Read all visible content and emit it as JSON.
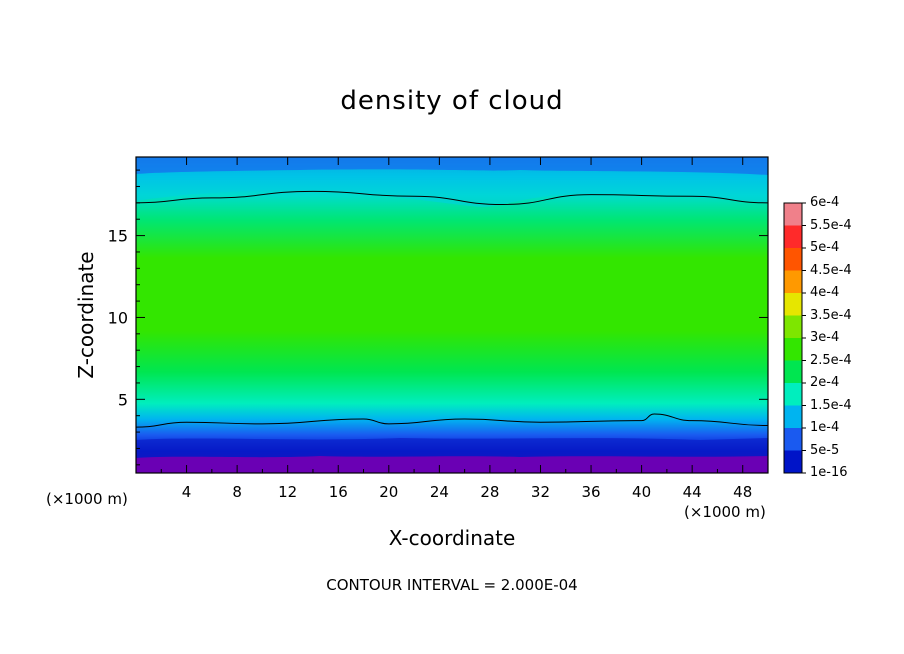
{
  "chart_data": {
    "type": "heatmap",
    "title": "density of cloud",
    "xlabel": "X-coordinate",
    "ylabel": "Z-coordinate",
    "x_unit": "(×1000 m)",
    "xlim": [
      0,
      50
    ],
    "ylim": [
      0.5,
      19.8
    ],
    "x_ticks": [
      4,
      8,
      12,
      16,
      20,
      24,
      28,
      32,
      36,
      40,
      44,
      48
    ],
    "y_ticks": [
      5,
      10,
      15
    ],
    "note": "CONTOUR INTERVAL = 2.000E-04",
    "colorbar": {
      "labels": [
        "6e-4",
        "5.5e-4",
        "5e-4",
        "4.5e-4",
        "4e-4",
        "3.5e-4",
        "3e-4",
        "2.5e-4",
        "2e-4",
        "1.5e-4",
        "1e-4",
        "5e-5",
        "1e-16"
      ],
      "colors": [
        "#f0808a",
        "#ff2a2a",
        "#ff5500",
        "#ff9900",
        "#e6e600",
        "#7ee600",
        "#33e600",
        "#00e650",
        "#00eebe",
        "#00b4f0",
        "#1a5af0",
        "#0014c8",
        "#6a00b4"
      ]
    },
    "contour_lines": [
      {
        "level": "2e-4",
        "z_profile": [
          [
            0,
            17.0
          ],
          [
            6,
            17.3
          ],
          [
            14,
            17.7
          ],
          [
            22,
            17.4
          ],
          [
            29,
            16.9
          ],
          [
            36,
            17.5
          ],
          [
            44,
            17.4
          ],
          [
            50,
            17.0
          ]
        ]
      },
      {
        "level": "2e-4",
        "z_profile": [
          [
            0,
            3.3
          ],
          [
            4,
            3.6
          ],
          [
            10,
            3.5
          ],
          [
            18,
            3.8
          ],
          [
            20,
            3.5
          ],
          [
            26,
            3.8
          ],
          [
            32,
            3.6
          ],
          [
            40,
            3.7
          ],
          [
            41,
            4.1
          ],
          [
            44,
            3.7
          ],
          [
            50,
            3.4
          ]
        ]
      }
    ],
    "field_profile": [
      {
        "z": 19.8,
        "value": "1.5e-4"
      },
      {
        "z": 17.5,
        "value": "2e-4"
      },
      {
        "z": 16.0,
        "value": "2.5e-4"
      },
      {
        "z": 13.0,
        "value": "3e-4"
      },
      {
        "z": 9.5,
        "value": "3e-4"
      },
      {
        "z": 6.0,
        "value": "2.5e-4"
      },
      {
        "z": 4.0,
        "value": "2e-4"
      },
      {
        "z": 2.5,
        "value": "1e-4"
      },
      {
        "z": 1.5,
        "value": "5e-5"
      },
      {
        "z": 0.8,
        "value": "1e-16"
      }
    ]
  }
}
